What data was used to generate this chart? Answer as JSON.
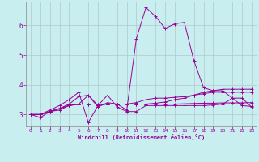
{
  "xlabel": "Windchill (Refroidissement éolien,°C)",
  "background_color": "#c8eef0",
  "grid_color": "#b0c8cc",
  "line_color": "#990099",
  "xlim": [
    -0.5,
    23.5
  ],
  "ylim": [
    2.6,
    6.8
  ],
  "xticks": [
    0,
    1,
    2,
    3,
    4,
    5,
    6,
    7,
    8,
    9,
    10,
    11,
    12,
    13,
    14,
    15,
    16,
    17,
    18,
    19,
    20,
    21,
    22,
    23
  ],
  "yticks": [
    3,
    4,
    5,
    6
  ],
  "series": {
    "line1": [
      3.0,
      2.9,
      3.1,
      3.15,
      3.3,
      3.35,
      3.65,
      3.3,
      3.35,
      3.35,
      3.35,
      3.35,
      3.35,
      3.35,
      3.35,
      3.35,
      3.36,
      3.37,
      3.38,
      3.38,
      3.39,
      3.39,
      3.39,
      3.4
    ],
    "line2": [
      3.0,
      3.0,
      3.15,
      3.3,
      3.5,
      3.75,
      2.73,
      3.3,
      3.65,
      3.25,
      3.1,
      3.1,
      3.3,
      3.3,
      3.3,
      3.3,
      3.3,
      3.3,
      3.3,
      3.32,
      3.35,
      3.55,
      3.3,
      3.27
    ],
    "line3_main": [
      3.0,
      3.0,
      3.1,
      3.2,
      3.35,
      3.6,
      3.65,
      3.25,
      3.4,
      3.35,
      3.15,
      5.55,
      6.6,
      6.3,
      5.9,
      6.05,
      6.1,
      4.8,
      3.9,
      3.8,
      3.8,
      3.55,
      3.55,
      3.25
    ],
    "line4": [
      3.0,
      3.0,
      3.1,
      3.2,
      3.3,
      3.35,
      3.35,
      3.35,
      3.35,
      3.35,
      3.35,
      3.35,
      3.35,
      3.38,
      3.42,
      3.5,
      3.55,
      3.65,
      3.75,
      3.8,
      3.85,
      3.85,
      3.85,
      3.85
    ],
    "line5": [
      3.0,
      3.0,
      3.1,
      3.2,
      3.3,
      3.35,
      3.35,
      3.35,
      3.35,
      3.35,
      3.35,
      3.4,
      3.5,
      3.55,
      3.55,
      3.58,
      3.6,
      3.65,
      3.7,
      3.75,
      3.75,
      3.75,
      3.75,
      3.75
    ]
  }
}
